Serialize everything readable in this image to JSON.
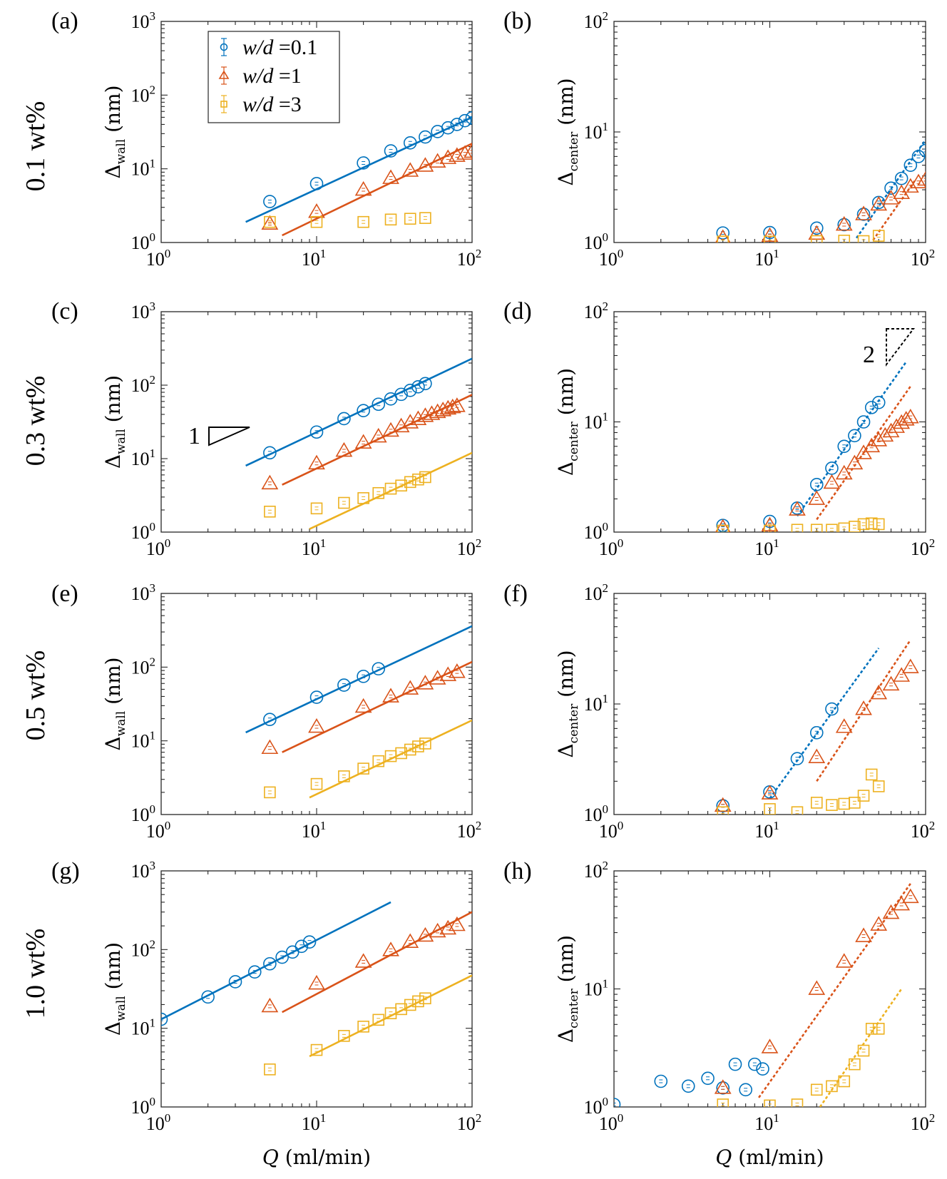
{
  "colors": {
    "s0": "#0072BD",
    "s1": "#D95319",
    "s2": "#EDB120"
  },
  "legend": [
    {
      "label": "w/d =0.1",
      "marker": "circle",
      "color": "#0072BD"
    },
    {
      "label": "w/d =1",
      "marker": "triangle",
      "color": "#D95319"
    },
    {
      "label": "w/d =3",
      "marker": "square",
      "color": "#EDB120"
    }
  ],
  "rows": [
    "0.1 wt%",
    "0.3 wt%",
    "0.5 wt%",
    "1.0 wt%"
  ],
  "x_tick_base": "10",
  "x_tick_exps": [
    "0",
    "1",
    "2"
  ],
  "xlabel": "Q (ml/min)",
  "slope_labels": {
    "one": "1",
    "two": "2"
  },
  "chart_data": [
    {
      "type": "scatter",
      "panel": "(a)",
      "xlabel": "",
      "ylabel": "Δwall (nm)",
      "xscale": "log",
      "yscale": "log",
      "xlim": [
        1,
        100
      ],
      "ylim": [
        1,
        1000
      ],
      "y_tick_exps": [
        "0",
        "1",
        "2",
        "3"
      ],
      "series": [
        {
          "name": "w/d =0.1",
          "marker": "circle",
          "color": "#0072BD",
          "x": [
            5,
            10,
            20,
            30,
            40,
            50,
            60,
            70,
            80,
            90,
            100
          ],
          "y": [
            3.6,
            6.3,
            12,
            17.5,
            22.5,
            27,
            32,
            36,
            40,
            45,
            49
          ],
          "fit": {
            "style": "solid",
            "x": [
              3.5,
              100
            ],
            "y": [
              1.9,
              50
            ]
          }
        },
        {
          "name": "w/d =1",
          "marker": "triangle",
          "color": "#D95319",
          "x": [
            5,
            10,
            20,
            30,
            40,
            50,
            60,
            70,
            80,
            90,
            100
          ],
          "y": [
            1.8,
            2.6,
            5.2,
            7.5,
            9.4,
            11,
            12.5,
            14,
            15,
            16,
            17
          ],
          "fit": {
            "style": "solid",
            "x": [
              6,
              100
            ],
            "y": [
              1.25,
              22
            ]
          }
        },
        {
          "name": "w/d =3",
          "marker": "square",
          "color": "#EDB120",
          "x": [
            5,
            10,
            20,
            30,
            40,
            50
          ],
          "y": [
            1.9,
            1.9,
            1.9,
            2.05,
            2.1,
            2.15
          ]
        }
      ]
    },
    {
      "type": "scatter",
      "panel": "(b)",
      "xlabel": "",
      "ylabel": "Δcenter (nm)",
      "xscale": "log",
      "yscale": "log",
      "xlim": [
        1,
        100
      ],
      "ylim": [
        1,
        100
      ],
      "y_tick_exps": [
        "0",
        "1",
        "2"
      ],
      "series": [
        {
          "name": "w/d =0.1",
          "marker": "circle",
          "color": "#0072BD",
          "x": [
            5,
            10,
            20,
            30,
            40,
            50,
            60,
            70,
            80,
            90,
            100
          ],
          "y": [
            1.22,
            1.23,
            1.35,
            1.45,
            1.8,
            2.3,
            3.1,
            3.8,
            5,
            6,
            6.8
          ],
          "fit": {
            "style": "dotted",
            "x": [
              36,
              100
            ],
            "y": [
              1.1,
              8.5
            ]
          }
        },
        {
          "name": "w/d =1",
          "marker": "triangle",
          "color": "#D95319",
          "x": [
            5,
            10,
            20,
            30,
            40,
            50,
            60,
            70,
            80,
            90,
            100
          ],
          "y": [
            1.1,
            1.15,
            1.2,
            1.45,
            1.8,
            2.2,
            2.5,
            2.8,
            3.2,
            3.5,
            3.7
          ],
          "fit": {
            "style": "dotted",
            "x": [
              46,
              85
            ],
            "y": [
              1.05,
              3.6
            ]
          }
        },
        {
          "name": "w/d =3",
          "marker": "square",
          "color": "#EDB120",
          "x": [
            5,
            10,
            20,
            30,
            40,
            50
          ],
          "y": [
            1.02,
            1.02,
            1.03,
            1.04,
            1.03,
            1.15
          ]
        }
      ]
    },
    {
      "type": "scatter",
      "panel": "(c)",
      "xlabel": "",
      "ylabel": "Δwall (nm)",
      "xscale": "log",
      "yscale": "log",
      "xlim": [
        1,
        100
      ],
      "ylim": [
        1,
        1000
      ],
      "y_tick_exps": [
        "0",
        "1",
        "2",
        "3"
      ],
      "series": [
        {
          "name": "w/d =0.1",
          "marker": "circle",
          "color": "#0072BD",
          "x": [
            5,
            10,
            15,
            20,
            25,
            30,
            35,
            40,
            45,
            50
          ],
          "y": [
            12,
            23,
            35,
            45,
            55,
            65,
            75,
            85,
            95,
            105
          ],
          "fit": {
            "style": "solid",
            "x": [
              3.5,
              100
            ],
            "y": [
              8,
              230
            ]
          }
        },
        {
          "name": "w/d =1",
          "marker": "triangle",
          "color": "#D95319",
          "x": [
            5,
            10,
            15,
            20,
            25,
            30,
            35,
            40,
            45,
            50,
            55,
            60,
            65,
            70,
            75,
            80
          ],
          "y": [
            4.6,
            8.6,
            12.8,
            16.5,
            20,
            24,
            27.5,
            31,
            34.5,
            38,
            40.5,
            43,
            45.5,
            48,
            50,
            52
          ],
          "fit": {
            "style": "solid",
            "x": [
              6,
              100
            ],
            "y": [
              4.4,
              74
            ]
          }
        },
        {
          "name": "w/d =3",
          "marker": "square",
          "color": "#EDB120",
          "x": [
            5,
            10,
            15,
            20,
            25,
            30,
            35,
            40,
            45,
            50
          ],
          "y": [
            1.9,
            2.1,
            2.5,
            2.9,
            3.4,
            3.9,
            4.3,
            4.8,
            5.2,
            5.6
          ],
          "fit": {
            "style": "solid",
            "x": [
              9,
              100
            ],
            "y": [
              1.1,
              12
            ]
          }
        }
      ]
    },
    {
      "type": "scatter",
      "panel": "(d)",
      "xlabel": "",
      "ylabel": "Δcenter (nm)",
      "xscale": "log",
      "yscale": "log",
      "xlim": [
        1,
        100
      ],
      "ylim": [
        1,
        100
      ],
      "y_tick_exps": [
        "0",
        "1",
        "2"
      ],
      "series": [
        {
          "name": "w/d =0.1",
          "marker": "circle",
          "color": "#0072BD",
          "x": [
            5,
            10,
            15,
            20,
            25,
            30,
            35,
            40,
            45,
            50
          ],
          "y": [
            1.15,
            1.25,
            1.65,
            2.7,
            3.8,
            6,
            7.5,
            10,
            13.5,
            15
          ],
          "fit": {
            "style": "dotted",
            "x": [
              15,
              75
            ],
            "y": [
              1.4,
              35
            ]
          }
        },
        {
          "name": "w/d =1",
          "marker": "triangle",
          "color": "#D95319",
          "x": [
            5,
            10,
            15,
            20,
            25,
            30,
            35,
            40,
            45,
            50,
            55,
            60,
            65,
            70,
            75,
            80
          ],
          "y": [
            1.1,
            1.15,
            1.6,
            2,
            2.8,
            3.4,
            4.2,
            5.2,
            6,
            6.8,
            7.5,
            8.2,
            9,
            9.8,
            10.5,
            11
          ],
          "fit": {
            "style": "dotted",
            "x": [
              20,
              80
            ],
            "y": [
              1.3,
              21
            ]
          }
        },
        {
          "name": "w/d =3",
          "marker": "square",
          "color": "#EDB120",
          "x": [
            5,
            10,
            15,
            20,
            25,
            30,
            35,
            40,
            45,
            50
          ],
          "y": [
            1.03,
            1.03,
            1.05,
            1.05,
            1.05,
            1.08,
            1.12,
            1.18,
            1.2,
            1.18
          ]
        }
      ]
    },
    {
      "type": "scatter",
      "panel": "(e)",
      "xlabel": "",
      "ylabel": "Δwall (nm)",
      "xscale": "log",
      "yscale": "log",
      "xlim": [
        1,
        100
      ],
      "ylim": [
        1,
        1000
      ],
      "y_tick_exps": [
        "0",
        "1",
        "2",
        "3"
      ],
      "series": [
        {
          "name": "w/d =0.1",
          "marker": "circle",
          "color": "#0072BD",
          "x": [
            5,
            10,
            15,
            20,
            25
          ],
          "y": [
            19.5,
            39,
            57,
            75,
            95
          ],
          "fit": {
            "style": "solid",
            "x": [
              3.5,
              100
            ],
            "y": [
              13,
              360
            ]
          }
        },
        {
          "name": "w/d =1",
          "marker": "triangle",
          "color": "#D95319",
          "x": [
            5,
            10,
            20,
            30,
            40,
            50,
            60,
            70,
            80
          ],
          "y": [
            8,
            15.5,
            29,
            40,
            51,
            60,
            70,
            78,
            86
          ],
          "fit": {
            "style": "solid",
            "x": [
              6,
              100
            ],
            "y": [
              7,
              118
            ]
          }
        },
        {
          "name": "w/d =3",
          "marker": "square",
          "color": "#EDB120",
          "x": [
            5,
            10,
            15,
            20,
            25,
            30,
            35,
            40,
            45,
            50
          ],
          "y": [
            2,
            2.6,
            3.3,
            4.2,
            5.3,
            6.2,
            6.8,
            7.6,
            8.4,
            9.2
          ],
          "fit": {
            "style": "solid",
            "x": [
              9,
              100
            ],
            "y": [
              1.7,
              19
            ]
          }
        }
      ]
    },
    {
      "type": "scatter",
      "panel": "(f)",
      "xlabel": "",
      "ylabel": "Δcenter (nm)",
      "xscale": "log",
      "yscale": "log",
      "xlim": [
        1,
        100
      ],
      "ylim": [
        1,
        100
      ],
      "y_tick_exps": [
        "0",
        "1",
        "2"
      ],
      "series": [
        {
          "name": "w/d =0.1",
          "marker": "circle",
          "color": "#0072BD",
          "x": [
            5,
            10,
            15,
            20,
            25
          ],
          "y": [
            1.2,
            1.6,
            3.2,
            5.5,
            9
          ],
          "fit": {
            "style": "dotted",
            "x": [
              10,
              50
            ],
            "y": [
              1.4,
              32
            ]
          }
        },
        {
          "name": "w/d =1",
          "marker": "triangle",
          "color": "#D95319",
          "x": [
            5,
            10,
            20,
            30,
            40,
            50,
            60,
            70,
            80
          ],
          "y": [
            1.2,
            1.55,
            3.3,
            6.2,
            9,
            12.5,
            15,
            18,
            21.5
          ],
          "fit": {
            "style": "dotted",
            "x": [
              20,
              80
            ],
            "y": [
              2,
              38
            ]
          }
        },
        {
          "name": "w/d =3",
          "marker": "square",
          "color": "#EDB120",
          "x": [
            5,
            10,
            15,
            20,
            25,
            30,
            35,
            40,
            45,
            50
          ],
          "y": [
            1.05,
            1.12,
            1.05,
            1.28,
            1.22,
            1.25,
            1.28,
            1.48,
            2.3,
            1.8
          ]
        }
      ]
    },
    {
      "type": "scatter",
      "panel": "(g)",
      "xlabel": "Q (ml/min)",
      "ylabel": "Δwall (nm)",
      "xscale": "log",
      "yscale": "log",
      "xlim": [
        1,
        100
      ],
      "ylim": [
        1,
        1000
      ],
      "y_tick_exps": [
        "0",
        "1",
        "2",
        "3"
      ],
      "series": [
        {
          "name": "w/d =0.1",
          "marker": "circle",
          "color": "#0072BD",
          "x": [
            1,
            2,
            3,
            4,
            5,
            6,
            7,
            8,
            9
          ],
          "y": [
            13,
            25,
            39,
            52,
            66,
            80,
            93,
            110,
            125
          ],
          "fit": {
            "style": "solid",
            "x": [
              1,
              30
            ],
            "y": [
              13,
              400
            ]
          }
        },
        {
          "name": "w/d =1",
          "marker": "triangle",
          "color": "#D95319",
          "x": [
            5,
            10,
            20,
            30,
            40,
            50,
            60,
            70,
            80
          ],
          "y": [
            19,
            37,
            70,
            98,
            125,
            150,
            170,
            185,
            205
          ],
          "fit": {
            "style": "solid",
            "x": [
              6,
              100
            ],
            "y": [
              16,
              300
            ]
          }
        },
        {
          "name": "w/d =3",
          "marker": "square",
          "color": "#EDB120",
          "x": [
            5,
            10,
            15,
            20,
            25,
            30,
            35,
            40,
            45,
            50
          ],
          "y": [
            3,
            5.3,
            8,
            10.5,
            12.8,
            15.5,
            17.5,
            19.8,
            22,
            24
          ],
          "fit": {
            "style": "solid",
            "x": [
              9,
              100
            ],
            "y": [
              4.4,
              47
            ]
          }
        }
      ]
    },
    {
      "type": "scatter",
      "panel": "(h)",
      "xlabel": "Q (ml/min)",
      "ylabel": "Δcenter (nm)",
      "xscale": "log",
      "yscale": "log",
      "xlim": [
        1,
        100
      ],
      "ylim": [
        1,
        100
      ],
      "y_tick_exps": [
        "0",
        "1",
        "2"
      ],
      "series": [
        {
          "name": "w/d =0.1",
          "marker": "circle",
          "color": "#0072BD",
          "x": [
            1,
            2,
            3,
            4,
            5,
            6,
            7,
            8,
            9
          ],
          "y": [
            1.05,
            1.65,
            1.5,
            1.75,
            1.45,
            2.3,
            1.4,
            2.3,
            2.1
          ]
        },
        {
          "name": "w/d =1",
          "marker": "triangle",
          "color": "#D95319",
          "x": [
            5,
            10,
            20,
            30,
            40,
            50,
            60,
            70,
            80
          ],
          "y": [
            1.45,
            3.2,
            10,
            17,
            28,
            35,
            44,
            52,
            60
          ],
          "fit": {
            "style": "dotted",
            "x": [
              8.5,
              80
            ],
            "y": [
              1.2,
              78
            ]
          }
        },
        {
          "name": "w/d =3",
          "marker": "square",
          "color": "#EDB120",
          "x": [
            5,
            10,
            15,
            20,
            25,
            30,
            35,
            40,
            45,
            50
          ],
          "y": [
            1.05,
            1.03,
            1.05,
            1.4,
            1.5,
            1.65,
            2.3,
            3,
            4.6,
            4.6
          ],
          "fit": {
            "style": "dotted",
            "x": [
              21,
              70
            ],
            "y": [
              1,
              10
            ]
          }
        }
      ]
    }
  ]
}
